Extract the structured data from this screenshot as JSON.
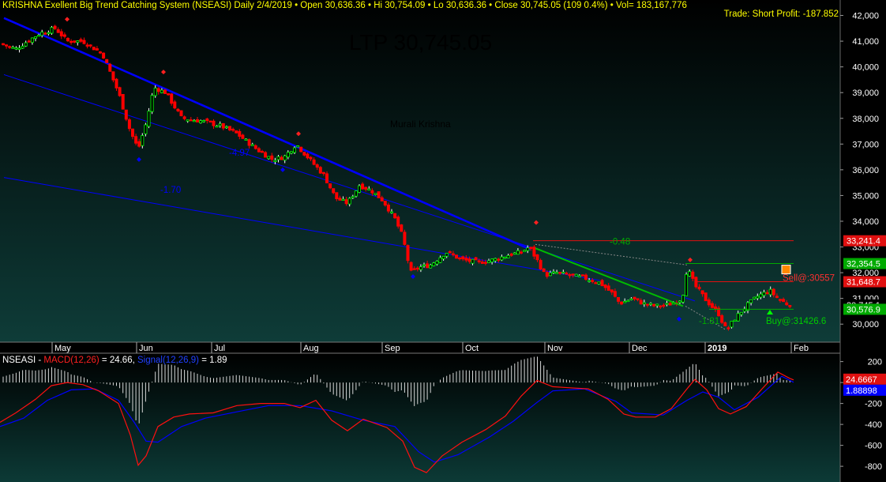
{
  "header": {
    "text": "KRISHNA Exellent Big Trend Catching System (NSEASI) Daily  2/4/2019  • Open 30,636.36  • Hi 30,754.09  • Lo 30,636.36  • Close 30,745.05 (109 0.4%)  • Vol= 183,167,776",
    "trade_label": "Trade: Short Profit: -187.852"
  },
  "ltp": "LTP 30,745.05",
  "watermark": "Murali Krishna",
  "macd_header": {
    "symbol": "NSEASI - ",
    "macd": "MACD(12,26)",
    "macd_val": " = 24.66, ",
    "signal": "Signal(12,26,9)",
    "signal_val": " = 1.89"
  },
  "colors": {
    "bg_top": "#000000",
    "bg_bottom": "#0e3c38",
    "up": "#00ff00",
    "down": "#ff0000",
    "trend_blue": "#0000ff",
    "green_line": "#00bb00",
    "sell_line": "#e01010",
    "axis_text": "#ffffff"
  },
  "chart_data": [
    {
      "type": "candlestick",
      "title": "KRISHNA Exellent Big Trend Catching System (NSEASI) Daily",
      "x_labels": [
        "May",
        "Jun",
        "Jul",
        "Aug",
        "Sep",
        "Oct",
        "Nov",
        "Dec",
        "2019",
        "Feb"
      ],
      "y_ticks": [
        30000,
        31000,
        32000,
        33000,
        34000,
        35000,
        36000,
        37000,
        38000,
        39000,
        40000,
        41000,
        42000
      ],
      "y_tick_labels": [
        "30,000",
        "31,000",
        "32,000",
        "33,000",
        "34,000",
        "35,000",
        "36,000",
        "37,000",
        "38,000",
        "39,000",
        "40,000",
        "41,000",
        "42,000"
      ],
      "ylim": [
        29300,
        42600
      ],
      "close_path": [
        [
          0,
          40900
        ],
        [
          20,
          40700
        ],
        [
          50,
          41300
        ],
        [
          70,
          41500
        ],
        [
          85,
          41000
        ],
        [
          105,
          41000
        ],
        [
          130,
          40500
        ],
        [
          150,
          39000
        ],
        [
          165,
          37500
        ],
        [
          175,
          36800
        ],
        [
          185,
          37800
        ],
        [
          195,
          39200
        ],
        [
          210,
          39000
        ],
        [
          230,
          38000
        ],
        [
          255,
          37900
        ],
        [
          280,
          37700
        ],
        [
          300,
          37400
        ],
        [
          325,
          36800
        ],
        [
          345,
          36400
        ],
        [
          360,
          36500
        ],
        [
          375,
          37000
        ],
        [
          395,
          36300
        ],
        [
          410,
          35800
        ],
        [
          425,
          34900
        ],
        [
          440,
          34700
        ],
        [
          455,
          35400
        ],
        [
          470,
          35200
        ],
        [
          485,
          34800
        ],
        [
          500,
          34100
        ],
        [
          510,
          33400
        ],
        [
          520,
          32000
        ],
        [
          530,
          32200
        ],
        [
          545,
          32300
        ],
        [
          565,
          32800
        ],
        [
          585,
          32500
        ],
        [
          605,
          32400
        ],
        [
          625,
          32500
        ],
        [
          645,
          32700
        ],
        [
          660,
          32800
        ],
        [
          670,
          33000
        ],
        [
          680,
          32500
        ],
        [
          690,
          31900
        ],
        [
          705,
          32000
        ],
        [
          720,
          31900
        ],
        [
          740,
          31800
        ],
        [
          760,
          31600
        ],
        [
          775,
          31200
        ],
        [
          785,
          30800
        ],
        [
          800,
          31000
        ],
        [
          815,
          30800
        ],
        [
          830,
          30700
        ],
        [
          845,
          30750
        ],
        [
          860,
          30900
        ],
        [
          865,
          31200
        ],
        [
          870,
          32200
        ],
        [
          880,
          31500
        ],
        [
          895,
          30900
        ],
        [
          910,
          30400
        ],
        [
          920,
          29750
        ],
        [
          930,
          30200
        ],
        [
          945,
          30700
        ],
        [
          960,
          31100
        ],
        [
          975,
          31300
        ],
        [
          985,
          31000
        ],
        [
          995,
          30800
        ],
        [
          1003,
          30745
        ]
      ],
      "levels": [
        {
          "label": "33,241.4",
          "value": 33241.4,
          "color": "#e01010"
        },
        {
          "label": "32,354.5",
          "value": 32354.5,
          "color": "#00aa00"
        },
        {
          "label": "31,648.7",
          "value": 31648.7,
          "color": "#e01010"
        },
        {
          "label": "30,745.1",
          "value": 30745.1,
          "color": "#000000"
        },
        {
          "label": "30,576.9",
          "value": 30576.9,
          "color": "#00aa00"
        }
      ],
      "annotations": [
        {
          "text": "-4.97",
          "color": "#0000ff"
        },
        {
          "text": "-1.70",
          "color": "#0000ff"
        },
        {
          "text": "-0.48",
          "color": "#00aa00"
        },
        {
          "text": "-1.81",
          "color": "#00aa00"
        },
        {
          "text": "Sell@:30557",
          "color": "#ff3030"
        },
        {
          "text": "Buy@:31426.6",
          "color": "#00cc00"
        }
      ]
    },
    {
      "type": "line",
      "title": "NSEASI - MACD(12,26) = 24.66, Signal(12,26,9) = 1.89",
      "y_ticks": [
        200,
        0,
        -200,
        -400,
        -600,
        -800
      ],
      "y_tick_labels": [
        "200",
        "",
        "-200",
        "-400",
        "-600",
        "-800"
      ],
      "ylim": [
        -950,
        280
      ],
      "macd": [
        [
          0,
          -380
        ],
        [
          20,
          -290
        ],
        [
          45,
          -160
        ],
        [
          65,
          -30
        ],
        [
          85,
          0
        ],
        [
          105,
          -20
        ],
        [
          125,
          -80
        ],
        [
          150,
          -200
        ],
        [
          165,
          -500
        ],
        [
          175,
          -790
        ],
        [
          185,
          -700
        ],
        [
          200,
          -420
        ],
        [
          220,
          -330
        ],
        [
          240,
          -300
        ],
        [
          270,
          -290
        ],
        [
          300,
          -220
        ],
        [
          330,
          -200
        ],
        [
          360,
          -200
        ],
        [
          380,
          -240
        ],
        [
          400,
          -170
        ],
        [
          420,
          -360
        ],
        [
          440,
          -460
        ],
        [
          460,
          -350
        ],
        [
          490,
          -430
        ],
        [
          510,
          -560
        ],
        [
          525,
          -810
        ],
        [
          540,
          -860
        ],
        [
          560,
          -700
        ],
        [
          585,
          -570
        ],
        [
          615,
          -450
        ],
        [
          640,
          -320
        ],
        [
          660,
          -130
        ],
        [
          680,
          20
        ],
        [
          700,
          -40
        ],
        [
          720,
          -50
        ],
        [
          745,
          -60
        ],
        [
          770,
          -160
        ],
        [
          790,
          -300
        ],
        [
          805,
          -330
        ],
        [
          830,
          -330
        ],
        [
          850,
          -250
        ],
        [
          870,
          -60
        ],
        [
          880,
          30
        ],
        [
          895,
          -70
        ],
        [
          910,
          -250
        ],
        [
          925,
          -300
        ],
        [
          945,
          -230
        ],
        [
          965,
          -60
        ],
        [
          985,
          100
        ],
        [
          1000,
          40
        ],
        [
          1005,
          25
        ]
      ],
      "signal": [
        [
          0,
          -420
        ],
        [
          30,
          -340
        ],
        [
          60,
          -170
        ],
        [
          90,
          -70
        ],
        [
          120,
          -60
        ],
        [
          150,
          -170
        ],
        [
          170,
          -380
        ],
        [
          185,
          -560
        ],
        [
          200,
          -570
        ],
        [
          230,
          -420
        ],
        [
          260,
          -340
        ],
        [
          300,
          -280
        ],
        [
          340,
          -220
        ],
        [
          380,
          -220
        ],
        [
          420,
          -270
        ],
        [
          460,
          -360
        ],
        [
          500,
          -420
        ],
        [
          530,
          -660
        ],
        [
          550,
          -760
        ],
        [
          580,
          -690
        ],
        [
          620,
          -520
        ],
        [
          650,
          -370
        ],
        [
          680,
          -190
        ],
        [
          700,
          -80
        ],
        [
          740,
          -60
        ],
        [
          780,
          -180
        ],
        [
          800,
          -290
        ],
        [
          840,
          -310
        ],
        [
          870,
          -170
        ],
        [
          890,
          -90
        ],
        [
          910,
          -140
        ],
        [
          930,
          -260
        ],
        [
          960,
          -140
        ],
        [
          990,
          60
        ],
        [
          1005,
          2
        ]
      ],
      "series_labels": [
        {
          "label": "24.6667",
          "color": "#e01010"
        },
        {
          "label": "1.88898",
          "color": "#0000ff"
        }
      ]
    }
  ]
}
